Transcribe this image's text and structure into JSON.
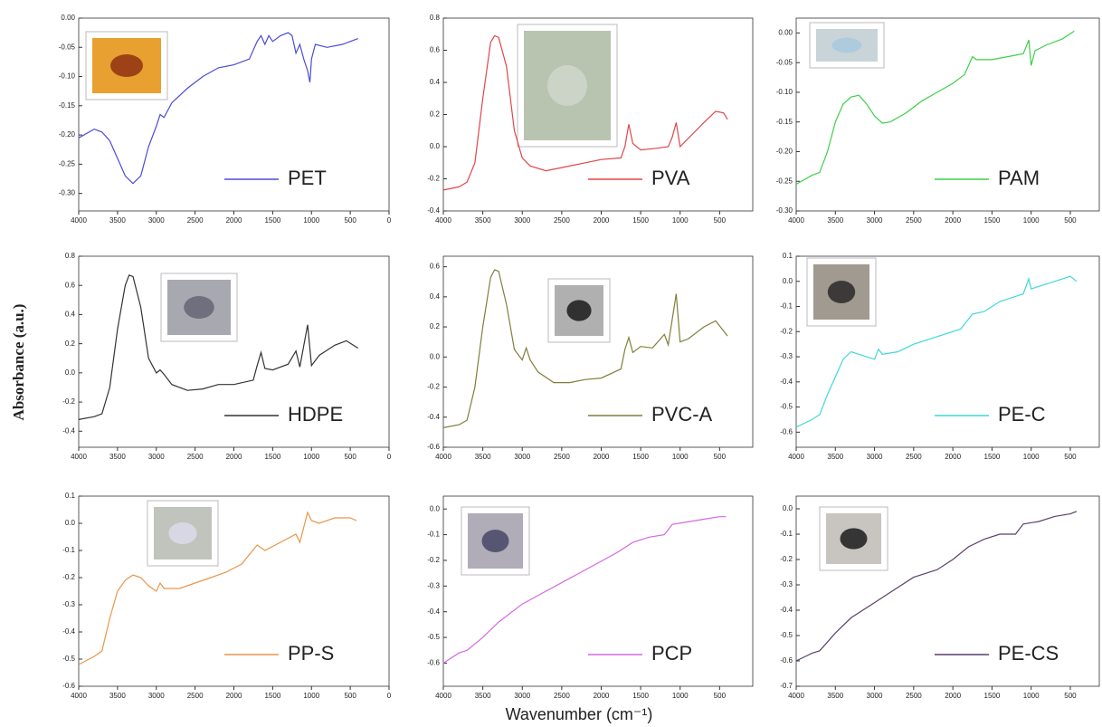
{
  "chart_data": [
    {
      "type": "line",
      "x": [
        4000,
        3800,
        3700,
        3600,
        3500,
        3400,
        3300,
        3200,
        3100,
        3000,
        2950,
        2900,
        2800,
        2600,
        2400,
        2200,
        2000,
        1800,
        1700,
        1650,
        1600,
        1550,
        1500,
        1400,
        1300,
        1250,
        1200,
        1150,
        1100,
        1050,
        1020,
        1000,
        950,
        800,
        600,
        400
      ],
      "series": [
        {
          "name": "PET",
          "color": "#4b4bd8",
          "values": [
            -0.205,
            -0.19,
            -0.195,
            -0.21,
            -0.24,
            -0.27,
            -0.283,
            -0.27,
            -0.22,
            -0.185,
            -0.165,
            -0.17,
            -0.145,
            -0.12,
            -0.1,
            -0.085,
            -0.08,
            -0.07,
            -0.04,
            -0.03,
            -0.045,
            -0.03,
            -0.04,
            -0.03,
            -0.025,
            -0.03,
            -0.06,
            -0.045,
            -0.07,
            -0.09,
            -0.11,
            -0.07,
            -0.045,
            -0.05,
            -0.045,
            -0.035
          ]
        }
      ],
      "xlim": [
        4000,
        0
      ],
      "xticks": [
        4000,
        3500,
        3000,
        2500,
        2000,
        1500,
        1000,
        500,
        0
      ],
      "ylim": [
        -0.33,
        0
      ],
      "yticks": [
        {
          "value": 0,
          "label": "0.00"
        },
        -0.05,
        {
          "value": -0.1,
          "label": "-0.10"
        },
        -0.15,
        {
          "value": -0.2,
          "label": "-0.20"
        },
        -0.25,
        {
          "value": -0.3,
          "label": "-0.30"
        }
      ]
    },
    {
      "type": "line",
      "x": [
        4000,
        3800,
        3700,
        3600,
        3500,
        3400,
        3350,
        3300,
        3200,
        3100,
        3000,
        2900,
        2700,
        2500,
        2200,
        2000,
        1750,
        1700,
        1650,
        1600,
        1500,
        1300,
        1150,
        1100,
        1050,
        1000,
        900,
        700,
        550,
        450,
        400
      ],
      "series": [
        {
          "name": "PVA",
          "color": "#e0454a",
          "values": [
            -0.27,
            -0.25,
            -0.22,
            -0.1,
            0.3,
            0.65,
            0.69,
            0.68,
            0.5,
            0.1,
            -0.07,
            -0.12,
            -0.15,
            -0.13,
            -0.1,
            -0.08,
            -0.07,
            0.0,
            0.14,
            0.02,
            -0.02,
            -0.01,
            0.0,
            0.06,
            0.15,
            0.0,
            0.05,
            0.15,
            0.22,
            0.21,
            0.17
          ]
        }
      ],
      "xlim": [
        4000,
        80
      ],
      "xticks": [
        4000,
        3500,
        3000,
        2500,
        2000,
        1500,
        1000,
        500
      ],
      "ylim": [
        -0.4,
        0.8
      ],
      "yticks": [
        0.8,
        0.6,
        0.4,
        0.2,
        {
          "value": 0,
          "label": "0.0"
        },
        -0.2,
        -0.4
      ]
    },
    {
      "type": "line",
      "x": [
        4000,
        3800,
        3700,
        3600,
        3500,
        3400,
        3300,
        3200,
        3100,
        3000,
        2900,
        2800,
        2600,
        2400,
        2200,
        2000,
        1850,
        1750,
        1700,
        1500,
        1300,
        1100,
        1030,
        1000,
        950,
        800,
        600,
        450
      ],
      "series": [
        {
          "name": "PAM",
          "color": "#3ecf4a",
          "values": [
            -0.255,
            -0.24,
            -0.235,
            -0.2,
            -0.15,
            -0.12,
            -0.108,
            -0.105,
            -0.12,
            -0.14,
            -0.152,
            -0.15,
            -0.135,
            -0.115,
            -0.1,
            -0.085,
            -0.07,
            -0.04,
            -0.045,
            -0.045,
            -0.04,
            -0.035,
            -0.012,
            -0.055,
            -0.03,
            -0.02,
            -0.01,
            0.003
          ]
        }
      ],
      "xlim": [
        4000,
        130
      ],
      "xticks": [
        4000,
        3500,
        3000,
        2500,
        2000,
        1500,
        1000,
        500
      ],
      "ylim": [
        -0.3,
        0.025
      ],
      "yticks": [
        {
          "value": 0,
          "label": "0.00"
        },
        -0.05,
        {
          "value": -0.1,
          "label": "-0.10"
        },
        -0.15,
        {
          "value": -0.2,
          "label": "-0.20"
        },
        -0.25,
        {
          "value": -0.3,
          "label": "-0.30"
        }
      ]
    },
    {
      "type": "line",
      "x": [
        4000,
        3800,
        3700,
        3600,
        3500,
        3400,
        3350,
        3300,
        3200,
        3100,
        3000,
        2950,
        2900,
        2800,
        2600,
        2400,
        2200,
        2000,
        1750,
        1700,
        1650,
        1600,
        1500,
        1300,
        1200,
        1150,
        1050,
        1000,
        900,
        700,
        550,
        400
      ],
      "series": [
        {
          "name": "HDPE",
          "color": "#333333",
          "values": [
            -0.32,
            -0.3,
            -0.28,
            -0.1,
            0.3,
            0.6,
            0.67,
            0.66,
            0.45,
            0.1,
            0.0,
            0.02,
            -0.01,
            -0.08,
            -0.12,
            -0.11,
            -0.08,
            -0.08,
            -0.05,
            0.05,
            0.14,
            0.03,
            0.02,
            0.06,
            0.15,
            0.04,
            0.33,
            0.05,
            0.12,
            0.19,
            0.22,
            0.17
          ]
        }
      ],
      "xlim": [
        4000,
        0
      ],
      "xticks": [
        4000,
        3500,
        3000,
        2500,
        2000,
        1500,
        1000,
        500,
        0
      ],
      "ylim": [
        -0.51,
        0.8
      ],
      "yticks": [
        0.8,
        0.6,
        0.4,
        0.2,
        {
          "value": 0,
          "label": "0.0"
        },
        -0.2,
        -0.4
      ]
    },
    {
      "type": "line",
      "x": [
        4000,
        3800,
        3700,
        3600,
        3500,
        3400,
        3350,
        3300,
        3200,
        3100,
        3000,
        2950,
        2900,
        2800,
        2600,
        2400,
        2200,
        2000,
        1750,
        1700,
        1650,
        1600,
        1500,
        1350,
        1200,
        1150,
        1050,
        1000,
        900,
        700,
        550,
        400
      ],
      "series": [
        {
          "name": "PVC-A",
          "color": "#7f7f3a",
          "values": [
            -0.47,
            -0.45,
            -0.42,
            -0.2,
            0.2,
            0.53,
            0.58,
            0.57,
            0.35,
            0.05,
            -0.02,
            0.06,
            -0.02,
            -0.1,
            -0.17,
            -0.17,
            -0.15,
            -0.14,
            -0.08,
            0.05,
            0.13,
            0.03,
            0.07,
            0.06,
            0.15,
            0.08,
            0.42,
            0.1,
            0.12,
            0.2,
            0.24,
            0.14
          ]
        }
      ],
      "xlim": [
        4000,
        80
      ],
      "xticks": [
        4000,
        3500,
        3000,
        2500,
        2000,
        1500,
        1000,
        500
      ],
      "ylim": [
        -0.6,
        0.67
      ],
      "yticks": [
        0.6,
        0.4,
        0.2,
        {
          "value": 0,
          "label": "0.0"
        },
        -0.2,
        -0.4,
        -0.6
      ]
    },
    {
      "type": "line",
      "x": [
        4000,
        3800,
        3700,
        3600,
        3500,
        3400,
        3300,
        3200,
        3100,
        3000,
        2950,
        2900,
        2700,
        2500,
        2300,
        2100,
        1900,
        1750,
        1600,
        1400,
        1200,
        1100,
        1030,
        1000,
        900,
        700,
        500,
        420
      ],
      "series": [
        {
          "name": "PE-C",
          "color": "#3fd8d8",
          "values": [
            -0.58,
            -0.55,
            -0.53,
            -0.45,
            -0.38,
            -0.31,
            -0.28,
            -0.29,
            -0.3,
            -0.31,
            -0.27,
            -0.29,
            -0.28,
            -0.25,
            -0.23,
            -0.21,
            -0.19,
            -0.13,
            -0.12,
            -0.08,
            -0.06,
            -0.05,
            0.01,
            -0.03,
            -0.02,
            0.0,
            0.02,
            0.0
          ]
        }
      ],
      "xlim": [
        4000,
        130
      ],
      "xticks": [
        4000,
        3500,
        3000,
        2500,
        2000,
        1500,
        1000,
        500
      ],
      "ylim": [
        -0.66,
        0.1
      ],
      "yticks": [
        0.1,
        {
          "value": 0,
          "label": "0.0"
        },
        -0.1,
        -0.2,
        -0.3,
        -0.4,
        -0.5,
        -0.6
      ]
    },
    {
      "type": "line",
      "x": [
        4000,
        3800,
        3700,
        3600,
        3500,
        3400,
        3300,
        3200,
        3100,
        3000,
        2950,
        2900,
        2700,
        2500,
        2300,
        2100,
        1900,
        1700,
        1600,
        1400,
        1200,
        1150,
        1050,
        1000,
        900,
        700,
        500,
        420
      ],
      "series": [
        {
          "name": "PP-S",
          "color": "#e8964a",
          "values": [
            -0.52,
            -0.49,
            -0.47,
            -0.35,
            -0.25,
            -0.21,
            -0.19,
            -0.2,
            -0.23,
            -0.25,
            -0.22,
            -0.24,
            -0.24,
            -0.22,
            -0.2,
            -0.18,
            -0.15,
            -0.08,
            -0.1,
            -0.07,
            -0.04,
            -0.07,
            0.04,
            0.01,
            0.0,
            0.02,
            0.02,
            0.01
          ]
        }
      ],
      "xlim": [
        4000,
        0
      ],
      "xticks": [
        4000,
        3500,
        3000,
        2500,
        2000,
        1500,
        1000,
        500,
        0
      ],
      "ylim": [
        -0.6,
        0.1
      ],
      "yticks": [
        0.1,
        {
          "value": 0,
          "label": "0.0"
        },
        -0.1,
        -0.2,
        -0.3,
        -0.4,
        -0.5,
        -0.6
      ]
    },
    {
      "type": "line",
      "x": [
        4000,
        3800,
        3700,
        3500,
        3300,
        3000,
        2700,
        2400,
        2100,
        1800,
        1600,
        1400,
        1200,
        1100,
        900,
        700,
        500,
        420
      ],
      "series": [
        {
          "name": "PCP",
          "color": "#d468e0",
          "values": [
            -0.6,
            -0.56,
            -0.55,
            -0.5,
            -0.44,
            -0.37,
            -0.32,
            -0.27,
            -0.22,
            -0.17,
            -0.13,
            -0.11,
            -0.1,
            -0.06,
            -0.05,
            -0.04,
            -0.03,
            -0.03
          ]
        }
      ],
      "xlim": [
        4000,
        80
      ],
      "xticks": [
        4000,
        3500,
        3000,
        2500,
        2000,
        1500,
        1000,
        500
      ],
      "ylim": [
        -0.69,
        0.05
      ],
      "yticks": [
        {
          "value": 0,
          "label": "0.0"
        },
        -0.1,
        -0.2,
        -0.3,
        -0.4,
        -0.5,
        -0.6
      ]
    },
    {
      "type": "line",
      "x": [
        4000,
        3800,
        3700,
        3500,
        3300,
        3000,
        2700,
        2500,
        2200,
        2000,
        1800,
        1600,
        1400,
        1200,
        1100,
        900,
        700,
        500,
        420
      ],
      "series": [
        {
          "name": "PE-CS",
          "color": "#5a3f6e",
          "values": [
            -0.6,
            -0.57,
            -0.56,
            -0.49,
            -0.43,
            -0.37,
            -0.31,
            -0.27,
            -0.24,
            -0.2,
            -0.15,
            -0.12,
            -0.1,
            -0.1,
            -0.06,
            -0.05,
            -0.03,
            -0.02,
            -0.01
          ]
        }
      ],
      "xlim": [
        4000,
        130
      ],
      "xticks": [
        4000,
        3500,
        3000,
        2500,
        2000,
        1500,
        1000,
        500
      ],
      "ylim": [
        -0.7,
        0.05
      ],
      "yticks": [
        {
          "value": 0,
          "label": "0.0"
        },
        -0.1,
        -0.2,
        -0.3,
        -0.4,
        -0.5,
        -0.6,
        -0.7
      ]
    }
  ],
  "xlabel": "Wavenumber (cm⁻¹)",
  "ylabel": "Absorbance (a.u.)"
}
